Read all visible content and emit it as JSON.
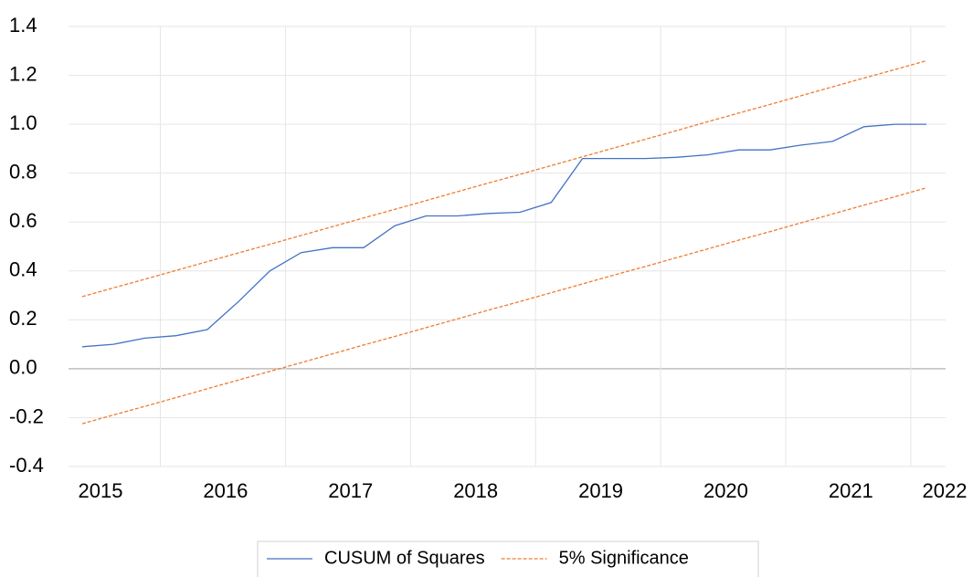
{
  "chart_data": {
    "type": "line",
    "categories": [
      "2015",
      null,
      null,
      null,
      "2016",
      null,
      null,
      null,
      "2017",
      null,
      null,
      null,
      "2018",
      null,
      null,
      null,
      "2019",
      null,
      null,
      null,
      "2020",
      null,
      null,
      null,
      "2021",
      null,
      null,
      "2022"
    ],
    "series": [
      {
        "name": "CUSUM of Squares",
        "color": "#4472c4",
        "dash": false,
        "values": [
          0.09,
          0.1,
          0.125,
          0.135,
          0.16,
          0.275,
          0.4,
          0.475,
          0.495,
          0.495,
          0.585,
          0.625,
          0.625,
          0.635,
          0.64,
          0.68,
          0.86,
          0.86,
          0.86,
          0.865,
          0.875,
          0.895,
          0.895,
          0.915,
          0.93,
          0.99,
          1.0,
          1.0
        ]
      },
      {
        "name": "5% Significance",
        "color": "#ed7d31",
        "dash": true,
        "values": [
          0.295,
          0.331,
          0.366,
          0.402,
          0.438,
          0.474,
          0.509,
          0.545,
          0.581,
          0.617,
          0.652,
          0.688,
          0.724,
          0.76,
          0.795,
          0.831,
          0.867,
          0.903,
          0.938,
          0.974,
          1.01,
          1.046,
          1.081,
          1.117,
          1.153,
          1.189,
          1.224,
          1.26
        ]
      },
      {
        "color": "#ed7d31",
        "dash": true,
        "values": [
          -0.225,
          -0.189,
          -0.154,
          -0.118,
          -0.082,
          -0.046,
          -0.011,
          0.025,
          0.061,
          0.097,
          0.132,
          0.168,
          0.204,
          0.24,
          0.275,
          0.311,
          0.347,
          0.383,
          0.418,
          0.454,
          0.49,
          0.526,
          0.561,
          0.597,
          0.633,
          0.669,
          0.704,
          0.74
        ]
      }
    ],
    "ylim": [
      -0.4,
      1.4
    ],
    "yticks": [
      -0.4,
      -0.2,
      {
        "value": 0,
        "label": "0.0"
      },
      0.2,
      0.4,
      0.6,
      0.8,
      {
        "value": 1,
        "label": "1.0"
      },
      1.2,
      1.4
    ],
    "grid": true
  }
}
